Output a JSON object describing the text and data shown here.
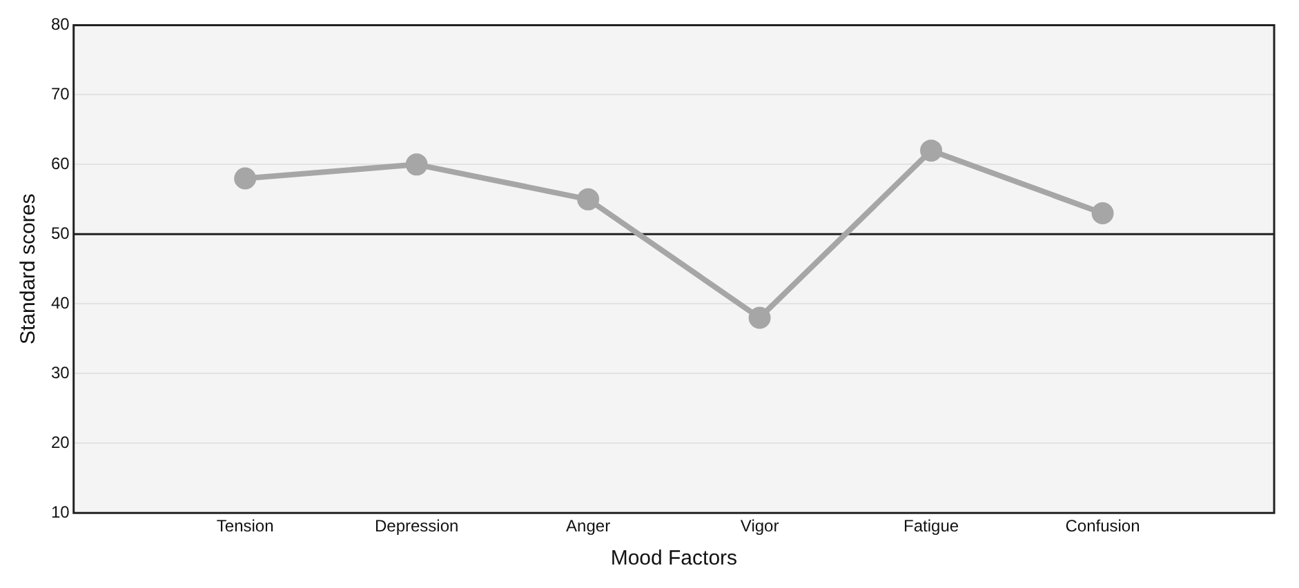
{
  "chart_data": {
    "type": "line",
    "xlabel": "Mood Factors",
    "ylabel": "Standard scores",
    "categories": [
      "Tension",
      "Depression",
      "Anger",
      "Vigor",
      "Fatigue",
      "Confusion"
    ],
    "series": [
      {
        "color": "#a6a6a6",
        "values": [
          58,
          60,
          55,
          38,
          62,
          53
        ]
      }
    ],
    "ylim": [
      10,
      80
    ],
    "yticks": [
      10,
      20,
      30,
      40,
      50,
      60,
      70,
      80
    ],
    "grid": "y",
    "legend": false,
    "marker": "circle",
    "line_style": "solid",
    "ref_lines": [
      {
        "axis": "y",
        "value": 50,
        "color": "#222222"
      }
    ]
  }
}
